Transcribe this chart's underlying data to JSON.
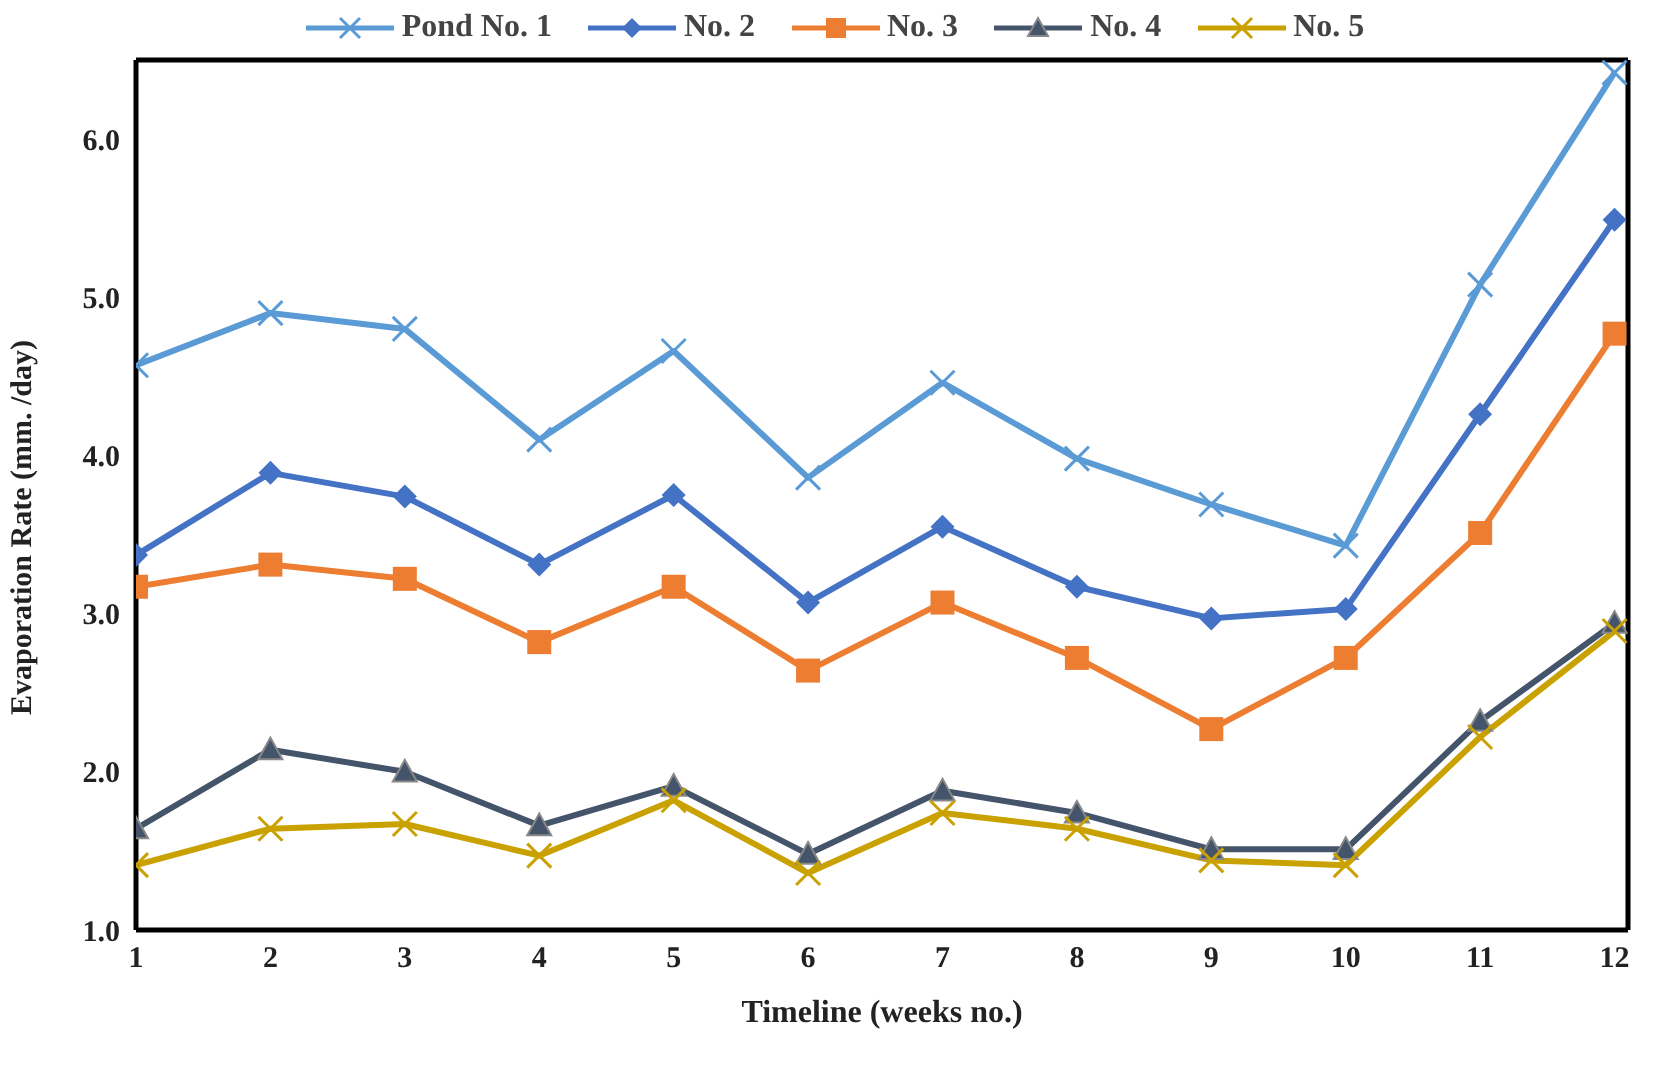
{
  "chart_data": {
    "type": "line",
    "xlabel": "Timeline (weeks no.)",
    "ylabel": "Evaporation Rate (mm. /day)",
    "x": [
      1,
      2,
      3,
      4,
      5,
      6,
      7,
      8,
      9,
      10,
      11,
      12
    ],
    "series": [
      {
        "name": "Pond No. 1",
        "color": "#5b9bd5",
        "marker": "cross",
        "values": [
          4.57,
          4.9,
          4.8,
          4.1,
          4.66,
          3.86,
          4.46,
          3.98,
          3.69,
          3.43,
          5.08,
          6.42
        ]
      },
      {
        "name": "No. 2",
        "color": "#4472c4",
        "marker": "diamond",
        "values": [
          3.37,
          3.89,
          3.74,
          3.31,
          3.75,
          3.07,
          3.55,
          3.17,
          2.97,
          3.03,
          4.26,
          5.49
        ]
      },
      {
        "name": "No. 3",
        "color": "#ed7d31",
        "marker": "square",
        "values": [
          3.17,
          3.31,
          3.22,
          2.82,
          3.17,
          2.64,
          3.07,
          2.72,
          2.27,
          2.72,
          3.51,
          4.77
        ]
      },
      {
        "name": "No. 4",
        "color": "#44546a",
        "marker": "triangle",
        "values": [
          1.64,
          2.14,
          2.0,
          1.66,
          1.91,
          1.48,
          1.88,
          1.74,
          1.51,
          1.51,
          2.32,
          2.94
        ]
      },
      {
        "name": "No. 5",
        "color": "#c9a100",
        "marker": "cross",
        "values": [
          1.41,
          1.64,
          1.67,
          1.47,
          1.82,
          1.36,
          1.74,
          1.64,
          1.44,
          1.41,
          2.22,
          2.89
        ]
      }
    ],
    "xlim": [
      1,
      12.1
    ],
    "xticks": [
      1,
      2,
      3,
      4,
      5,
      6,
      7,
      8,
      9,
      10,
      11,
      12
    ],
    "ylim": [
      1,
      6.5
    ],
    "yticks": [
      {
        "value": 1,
        "label": "1.0"
      },
      {
        "value": 2,
        "label": "2.0"
      },
      {
        "value": 3,
        "label": "3.0"
      },
      {
        "value": 4,
        "label": "4.0"
      },
      {
        "value": 5,
        "label": "5.0"
      },
      {
        "value": 6,
        "label": "6.0"
      }
    ],
    "grid": false,
    "legend": "top",
    "line_style": "solid"
  }
}
